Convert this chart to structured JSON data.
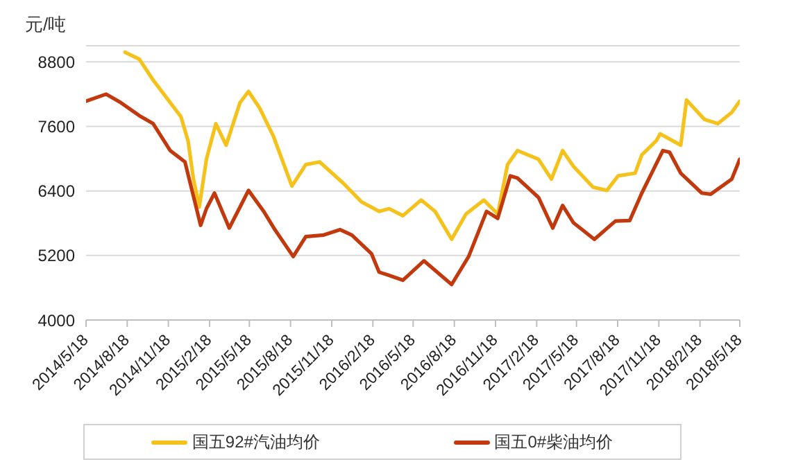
{
  "chart_data": {
    "type": "line",
    "ylabel": "元/吨",
    "xlim": [
      "2014-05-18",
      "2018-05-18"
    ],
    "xticks": [
      {
        "value": "2014-05-18",
        "label": "2014/5/18"
      },
      {
        "value": "2014-08-18",
        "label": "2014/8/18"
      },
      {
        "value": "2014-11-18",
        "label": "2014/11/18"
      },
      {
        "value": "2015-02-18",
        "label": "2015/2/18"
      },
      {
        "value": "2015-05-18",
        "label": "2015/5/18"
      },
      {
        "value": "2015-08-18",
        "label": "2015/8/18"
      },
      {
        "value": "2015-11-18",
        "label": "2015/11/18"
      },
      {
        "value": "2016-02-18",
        "label": "2016/2/18"
      },
      {
        "value": "2016-05-18",
        "label": "2016/5/18"
      },
      {
        "value": "2016-08-18",
        "label": "2016/8/18"
      },
      {
        "value": "2016-11-18",
        "label": "2016/11/18"
      },
      {
        "value": "2017-02-18",
        "label": "2017/2/18"
      },
      {
        "value": "2017-05-18",
        "label": "2017/5/18"
      },
      {
        "value": "2017-08-18",
        "label": "2017/8/18"
      },
      {
        "value": "2017-11-18",
        "label": "2017/11/18"
      },
      {
        "value": "2018-02-18",
        "label": "2018/2/18"
      },
      {
        "value": "2018-05-18",
        "label": "2018/5/18"
      }
    ],
    "ylim": [
      4000,
      9100
    ],
    "yticks": [
      4000,
      5200,
      6400,
      7600,
      8800
    ],
    "grid": "y",
    "legend": "bottom",
    "marker": "none",
    "line_style": "solid",
    "series": [
      {
        "name": "国五92#汽油均价",
        "color": "#f5c21b",
        "x": [
          "2014-08-13",
          "2014-09-14",
          "2014-10-15",
          "2014-11-15",
          "2014-12-16",
          "2015-01-01",
          "2015-01-13",
          "2015-01-26",
          "2015-02-11",
          "2015-03-04",
          "2015-03-27",
          "2015-04-27",
          "2015-05-16",
          "2015-06-10",
          "2015-07-11",
          "2015-08-21",
          "2015-09-21",
          "2015-10-22",
          "2015-12-13",
          "2016-01-23",
          "2016-03-03",
          "2016-03-25",
          "2016-04-25",
          "2016-06-05",
          "2016-07-06",
          "2016-08-12",
          "2016-09-13",
          "2016-10-23",
          "2016-11-23",
          "2016-12-15",
          "2017-01-06",
          "2017-02-22",
          "2017-03-23",
          "2017-04-17",
          "2017-05-11",
          "2017-06-24",
          "2017-07-25",
          "2017-08-19",
          "2017-09-26",
          "2017-10-11",
          "2017-11-12",
          "2017-11-21",
          "2018-01-06",
          "2018-01-19",
          "2018-02-28",
          "2018-03-30",
          "2018-04-30",
          "2018-05-18"
        ],
        "values": [
          8980,
          8850,
          8460,
          8120,
          7780,
          7330,
          6620,
          6100,
          6990,
          7650,
          7250,
          8040,
          8250,
          7940,
          7410,
          6490,
          6890,
          6940,
          6550,
          6200,
          6020,
          6070,
          5940,
          6230,
          6020,
          5500,
          5970,
          6230,
          5970,
          6890,
          7150,
          6990,
          6620,
          7150,
          6860,
          6470,
          6410,
          6680,
          6730,
          7070,
          7330,
          7460,
          7250,
          8090,
          7730,
          7650,
          7860,
          8070
        ]
      },
      {
        "name": "国五0#柴油均价",
        "color": "#c1390d",
        "x": [
          "2014-05-18",
          "2014-07-02",
          "2014-08-04",
          "2014-09-14",
          "2014-10-15",
          "2014-11-22",
          "2014-12-25",
          "2015-01-16",
          "2015-01-29",
          "2015-02-11",
          "2015-03-01",
          "2015-04-03",
          "2015-04-27",
          "2015-05-16",
          "2015-06-19",
          "2015-07-14",
          "2015-08-24",
          "2015-09-21",
          "2015-10-31",
          "2015-12-07",
          "2016-01-02",
          "2016-02-15",
          "2016-03-03",
          "2016-03-25",
          "2016-04-25",
          "2016-06-11",
          "2016-08-12",
          "2016-09-19",
          "2016-10-29",
          "2016-11-23",
          "2016-12-21",
          "2017-01-06",
          "2017-02-22",
          "2017-03-26",
          "2017-04-17",
          "2017-05-11",
          "2017-06-27",
          "2017-08-13",
          "2017-09-14",
          "2017-10-11",
          "2017-11-27",
          "2017-12-12",
          "2018-01-06",
          "2018-02-22",
          "2018-03-14",
          "2018-04-30",
          "2018-05-18"
        ],
        "values": [
          8070,
          8200,
          8040,
          7800,
          7650,
          7150,
          6940,
          6200,
          5760,
          6070,
          6360,
          5710,
          6100,
          6410,
          6020,
          5680,
          5180,
          5550,
          5580,
          5680,
          5580,
          5230,
          4890,
          4830,
          4740,
          5100,
          4660,
          5180,
          6020,
          5890,
          6680,
          6640,
          6280,
          5710,
          6130,
          5810,
          5500,
          5840,
          5850,
          6360,
          7150,
          7120,
          6730,
          6360,
          6340,
          6620,
          6990
        ]
      }
    ]
  }
}
